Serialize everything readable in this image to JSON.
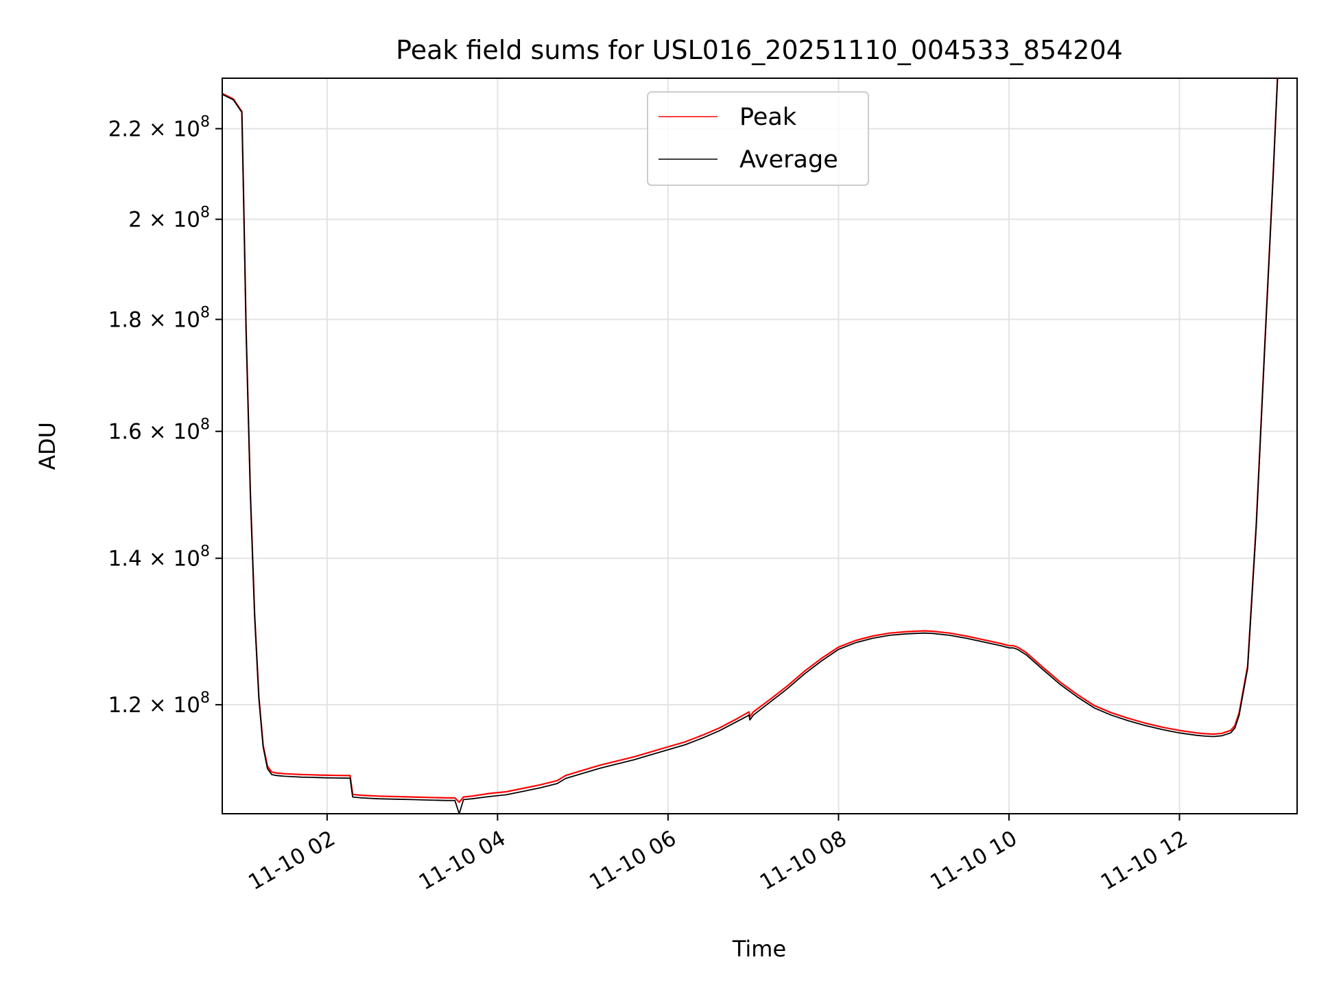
{
  "chart_data": {
    "type": "line",
    "title": "Peak field sums for USL016_20251110_004533_854204",
    "xlabel": "Time",
    "ylabel": "ADU",
    "yscale": "log",
    "grid": true,
    "legend_position": "upper-center",
    "xlim_hours": [
      0.77,
      13.38
    ],
    "ylim": [
      107000000,
      232000000
    ],
    "x_ticks": [
      {
        "hour": 2,
        "label": "11-10 02"
      },
      {
        "hour": 4,
        "label": "11-10 04"
      },
      {
        "hour": 6,
        "label": "11-10 06"
      },
      {
        "hour": 8,
        "label": "11-10 08"
      },
      {
        "hour": 10,
        "label": "11-10 10"
      },
      {
        "hour": 12,
        "label": "11-10 12"
      }
    ],
    "y_ticks": [
      {
        "value": 120000000,
        "mantissa": "1.2",
        "exponent": "8"
      },
      {
        "value": 140000000,
        "mantissa": "1.4",
        "exponent": "8"
      },
      {
        "value": 160000000,
        "mantissa": "1.6",
        "exponent": "8"
      },
      {
        "value": 180000000,
        "mantissa": "1.8",
        "exponent": "8"
      },
      {
        "value": 200000000,
        "mantissa": "2",
        "exponent": "8"
      },
      {
        "value": 220000000,
        "mantissa": "2.2",
        "exponent": "8"
      }
    ],
    "series": [
      {
        "name": "Peak",
        "color": "#ff0000",
        "x_hours": [
          0.77,
          0.9,
          1.0,
          1.02,
          1.05,
          1.1,
          1.15,
          1.2,
          1.25,
          1.3,
          1.35,
          1.4,
          1.45,
          1.5,
          1.6,
          1.7,
          1.8,
          1.9,
          2.0,
          2.1,
          2.27,
          2.3,
          2.4,
          2.6,
          2.8,
          3.0,
          3.2,
          3.4,
          3.5,
          3.55,
          3.6,
          3.7,
          3.9,
          4.1,
          4.3,
          4.5,
          4.7,
          4.8,
          5.0,
          5.2,
          5.4,
          5.6,
          5.8,
          6.0,
          6.2,
          6.4,
          6.6,
          6.8,
          6.95,
          6.96,
          7.0,
          7.2,
          7.4,
          7.6,
          7.8,
          8.0,
          8.2,
          8.4,
          8.6,
          8.8,
          9.0,
          9.1,
          9.3,
          9.5,
          9.7,
          9.9,
          10.0,
          10.05,
          10.1,
          10.2,
          10.4,
          10.6,
          10.8,
          11.0,
          11.2,
          11.4,
          11.6,
          11.8,
          12.0,
          12.2,
          12.3,
          12.4,
          12.5,
          12.6,
          12.65,
          12.7,
          12.8,
          12.9,
          13.0,
          13.1,
          13.15
        ],
        "values": [
          228300000,
          227000000,
          224000000,
          205000000,
          178000000,
          150000000,
          132000000,
          121000000,
          115000000,
          112500000,
          111800000,
          111700000,
          111650000,
          111600000,
          111550000,
          111500000,
          111480000,
          111450000,
          111420000,
          111400000,
          111380000,
          109200000,
          109100000,
          109000000,
          108950000,
          108900000,
          108850000,
          108800000,
          108800000,
          108300000,
          108900000,
          109000000,
          109300000,
          109500000,
          109900000,
          110300000,
          110800000,
          111400000,
          112000000,
          112600000,
          113100000,
          113600000,
          114200000,
          114800000,
          115400000,
          116200000,
          117100000,
          118200000,
          119100000,
          118500000,
          119100000,
          120700000,
          122400000,
          124300000,
          126000000,
          127500000,
          128400000,
          129000000,
          129400000,
          129600000,
          129700000,
          129650000,
          129400000,
          129000000,
          128500000,
          128000000,
          127700000,
          127700000,
          127500000,
          126800000,
          124800000,
          122900000,
          121300000,
          119900000,
          119000000,
          118300000,
          117700000,
          117200000,
          116800000,
          116500000,
          116400000,
          116350000,
          116450000,
          116800000,
          117400000,
          119000000,
          125000000,
          145000000,
          175000000,
          210000000,
          232000000
        ]
      },
      {
        "name": "Average",
        "color": "#000000",
        "x_hours": [
          0.77,
          0.9,
          1.0,
          1.02,
          1.05,
          1.1,
          1.15,
          1.2,
          1.25,
          1.3,
          1.35,
          1.4,
          1.45,
          1.5,
          1.6,
          1.7,
          1.8,
          1.9,
          2.0,
          2.1,
          2.27,
          2.3,
          2.4,
          2.6,
          2.8,
          3.0,
          3.2,
          3.4,
          3.5,
          3.55,
          3.6,
          3.7,
          3.9,
          4.1,
          4.3,
          4.5,
          4.7,
          4.8,
          5.0,
          5.2,
          5.4,
          5.6,
          5.8,
          6.0,
          6.2,
          6.4,
          6.6,
          6.8,
          6.95,
          6.96,
          7.0,
          7.2,
          7.4,
          7.6,
          7.8,
          8.0,
          8.2,
          8.4,
          8.6,
          8.8,
          9.0,
          9.1,
          9.3,
          9.5,
          9.7,
          9.9,
          10.0,
          10.05,
          10.1,
          10.2,
          10.4,
          10.6,
          10.8,
          11.0,
          11.2,
          11.4,
          11.6,
          11.8,
          12.0,
          12.2,
          12.3,
          12.4,
          12.5,
          12.6,
          12.65,
          12.7,
          12.8,
          12.9,
          13.0,
          13.1,
          13.15
        ],
        "values": [
          228100000,
          226800000,
          223800000,
          204800000,
          177800000,
          149800000,
          131800000,
          120800000,
          114800000,
          112200000,
          111500000,
          111400000,
          111350000,
          111300000,
          111250000,
          111200000,
          111180000,
          111150000,
          111120000,
          111100000,
          111080000,
          108900000,
          108800000,
          108700000,
          108650000,
          108600000,
          108550000,
          108500000,
          108500000,
          107000000,
          108600000,
          108700000,
          108950000,
          109150000,
          109550000,
          109950000,
          110450000,
          111050000,
          111650000,
          112250000,
          112750000,
          113250000,
          113850000,
          114450000,
          115050000,
          115850000,
          116750000,
          117850000,
          118700000,
          118100000,
          118700000,
          120350000,
          122050000,
          123950000,
          125650000,
          127200000,
          128100000,
          128700000,
          129100000,
          129300000,
          129400000,
          129350000,
          129100000,
          128700000,
          128200000,
          127700000,
          127400000,
          127400000,
          127200000,
          126500000,
          124500000,
          122600000,
          121000000,
          119600000,
          118700000,
          118000000,
          117400000,
          116900000,
          116500000,
          116200000,
          116100000,
          116050000,
          116150000,
          116500000,
          117100000,
          118700000,
          124700000,
          144700000,
          174700000,
          209700000,
          232000000
        ]
      }
    ]
  }
}
